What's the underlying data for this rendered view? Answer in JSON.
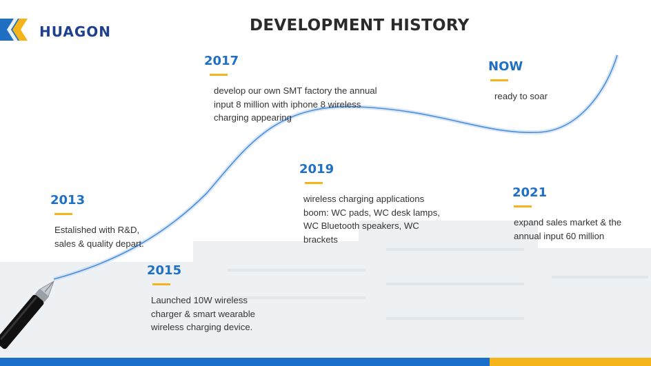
{
  "header": {
    "logo_text": "HUAGON",
    "title": "DEVELOPMENT HISTORY"
  },
  "colors": {
    "year": "#1f6fc2",
    "accent_gold": "#f5b41a",
    "footer_blue": "#1b6fcc",
    "curve": "#4a8fd8"
  },
  "milestones": [
    {
      "year": "2013",
      "description_lines": [
        "Estalished with R&D,",
        "sales & quality depart."
      ]
    },
    {
      "year": "2015",
      "description_lines": [
        "Launched 10W wireless",
        "charger &  smart wearable",
        "wireless charging device."
      ]
    },
    {
      "year": "2017",
      "description_lines": [
        "develop our own SMT factory the annual",
        "input 8 million with iphone 8 wireless",
        "charging appearing"
      ]
    },
    {
      "year": "2019",
      "description_lines": [
        "wireless charging applications",
        "boom: WC pads, WC desk lamps,",
        "WC Bluetooth speakers, WC",
        "brackets"
      ]
    },
    {
      "year": "2021",
      "description_lines": [
        "expand sales market & the",
        "annual input 60 million"
      ]
    },
    {
      "year": "NOW",
      "description_lines": [
        "ready to soar"
      ]
    }
  ],
  "icons": {
    "logo_mark": "chevron-logo-icon",
    "pen": "fountain-pen-icon"
  }
}
